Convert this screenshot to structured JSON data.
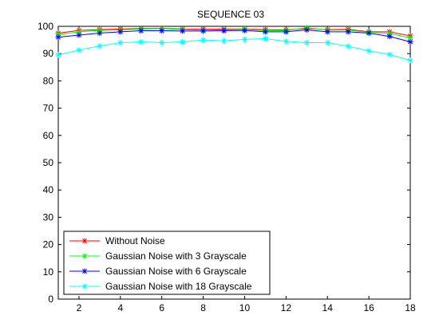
{
  "chart_data": {
    "type": "line",
    "title": "SEQUENCE 03",
    "xlabel": "",
    "ylabel": "",
    "xlim": [
      1,
      18
    ],
    "ylim": [
      0,
      100
    ],
    "xticks": [
      2,
      4,
      6,
      8,
      10,
      12,
      14,
      16,
      18
    ],
    "yticks": [
      0,
      10,
      20,
      30,
      40,
      50,
      60,
      70,
      80,
      90,
      100
    ],
    "grid": false,
    "legend_position": "bottom-left",
    "marker": "star",
    "x": [
      1,
      2,
      3,
      4,
      5,
      6,
      7,
      8,
      9,
      10,
      11,
      12,
      13,
      14,
      15,
      16,
      17,
      18
    ],
    "series": [
      {
        "name": "Without Noise",
        "color": "#ff0000",
        "values": [
          97.5,
          98.5,
          98.8,
          99.0,
          99.2,
          99.3,
          99.0,
          98.9,
          99.0,
          99.0,
          98.8,
          98.7,
          99.2,
          98.8,
          98.9,
          98.0,
          98.0,
          96.5
        ]
      },
      {
        "name": "Gaussian Noise with 3 Grayscale",
        "color": "#00ff00",
        "values": [
          97.0,
          98.0,
          98.5,
          98.7,
          99.0,
          99.2,
          98.8,
          98.6,
          98.7,
          98.9,
          98.4,
          98.4,
          99.5,
          98.6,
          98.6,
          97.8,
          97.4,
          95.8
        ]
      },
      {
        "name": "Gaussian Noise with 6 Grayscale",
        "color": "#0000ff",
        "values": [
          96.0,
          96.8,
          97.5,
          98.0,
          98.4,
          98.4,
          98.3,
          98.3,
          98.4,
          98.5,
          98.0,
          98.0,
          98.7,
          98.0,
          98.0,
          97.5,
          96.3,
          94.3
        ]
      },
      {
        "name": "Gaussian Noise with 18 Grayscale",
        "color": "#00ffff",
        "values": [
          89.5,
          91.3,
          92.8,
          94.0,
          94.3,
          94.0,
          94.3,
          95.0,
          94.7,
          95.2,
          95.5,
          94.5,
          94.0,
          94.0,
          92.7,
          91.0,
          89.7,
          87.5
        ]
      }
    ]
  }
}
